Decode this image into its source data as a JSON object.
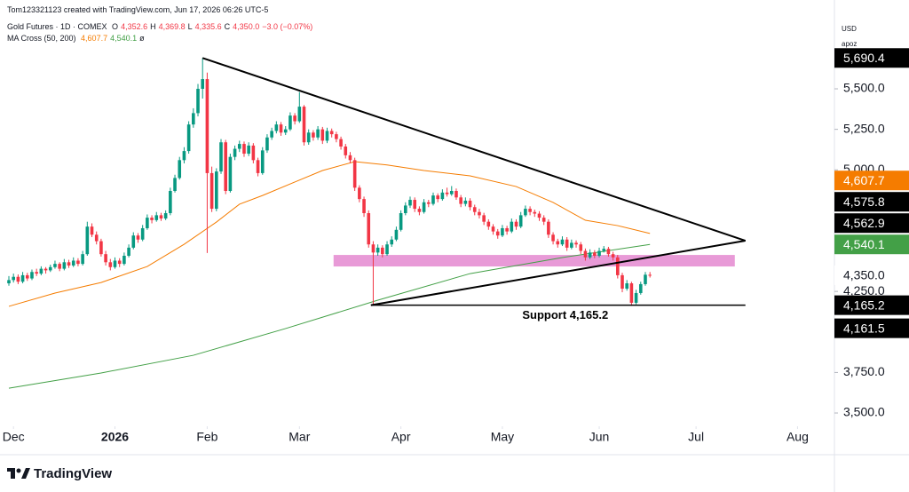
{
  "header": {
    "credit": "Tom123321123 created with TradingView.com, Jun 17, 2026 06:26 UTC-5",
    "symbol": "Gold Futures · 1D · COMEX",
    "ohlc": [
      {
        "key": "O",
        "value": "4,352.6"
      },
      {
        "key": "H",
        "value": "4,369.8"
      },
      {
        "key": "L",
        "value": "4,335.6"
      },
      {
        "key": "C",
        "value": "4,350.0"
      }
    ],
    "change": "−3.0 (−0.07%)",
    "indicator": "MA Cross (50, 200)",
    "indicator_values": [
      "4,607.7",
      "4,540.1"
    ],
    "indicator_extra": "ø",
    "currency": "USD",
    "account": "apoz"
  },
  "footer": {
    "brand": "TradingView"
  },
  "chart_data": {
    "type": "candlestick",
    "up_color": "#089981",
    "down_color": "#f23645",
    "xlim": [
      0,
      179
    ],
    "ylim": [
      3418,
      6048
    ],
    "xticks": [
      {
        "value": 1,
        "label": "Dec"
      },
      {
        "value": 23,
        "label": "2026"
      },
      {
        "value": 43,
        "label": "Feb"
      },
      {
        "value": 63,
        "label": "Mar"
      },
      {
        "value": 85,
        "label": "Apr"
      },
      {
        "value": 107,
        "label": "May"
      },
      {
        "value": 128,
        "label": "Jun"
      },
      {
        "value": 149,
        "label": "Jul"
      },
      {
        "value": 171,
        "label": "Aug"
      }
    ],
    "yticks": [
      {
        "value": 3500,
        "label": "3,500.0"
      },
      {
        "value": 3750,
        "label": "3,750.0"
      },
      {
        "value": 4250,
        "label": "4,250.0"
      },
      {
        "value": 5000,
        "label": "5,000.0"
      },
      {
        "value": 5250,
        "label": "5,250.0"
      },
      {
        "value": 5500,
        "label": "5,500.0"
      }
    ],
    "candles": [
      [
        4300,
        4345,
        4285,
        4320
      ],
      [
        4320,
        4360,
        4305,
        4340
      ],
      [
        4340,
        4355,
        4295,
        4310
      ],
      [
        4310,
        4370,
        4300,
        4350
      ],
      [
        4350,
        4365,
        4315,
        4330
      ],
      [
        4330,
        4385,
        4320,
        4370
      ],
      [
        4370,
        4390,
        4345,
        4360
      ],
      [
        4360,
        4405,
        4350,
        4390
      ],
      [
        4390,
        4400,
        4360,
        4380
      ],
      [
        4380,
        4415,
        4370,
        4400
      ],
      [
        4400,
        4440,
        4390,
        4420
      ],
      [
        4420,
        4430,
        4375,
        4390
      ],
      [
        4390,
        4450,
        4380,
        4430
      ],
      [
        4430,
        4445,
        4395,
        4410
      ],
      [
        4410,
        4460,
        4400,
        4440
      ],
      [
        4440,
        4455,
        4405,
        4420
      ],
      [
        4420,
        4500,
        4410,
        4480
      ],
      [
        4480,
        4680,
        4470,
        4650
      ],
      [
        4650,
        4670,
        4585,
        4600
      ],
      [
        4600,
        4620,
        4540,
        4560
      ],
      [
        4560,
        4575,
        4465,
        4480
      ],
      [
        4480,
        4500,
        4410,
        4430
      ],
      [
        4430,
        4450,
        4380,
        4400
      ],
      [
        4400,
        4460,
        4390,
        4440
      ],
      [
        4440,
        4455,
        4400,
        4420
      ],
      [
        4420,
        4490,
        4410,
        4470
      ],
      [
        4470,
        4540,
        4460,
        4520
      ],
      [
        4520,
        4615,
        4510,
        4595
      ],
      [
        4595,
        4610,
        4550,
        4570
      ],
      [
        4570,
        4660,
        4560,
        4640
      ],
      [
        4640,
        4725,
        4630,
        4705
      ],
      [
        4705,
        4720,
        4670,
        4690
      ],
      [
        4690,
        4740,
        4680,
        4720
      ],
      [
        4720,
        4735,
        4685,
        4700
      ],
      [
        4700,
        4750,
        4690,
        4733
      ],
      [
        4733,
        4890,
        4720,
        4870
      ],
      [
        4870,
        4970,
        4860,
        4950
      ],
      [
        4950,
        5080,
        4940,
        5060
      ],
      [
        5060,
        5140,
        5040,
        5116
      ],
      [
        5116,
        5300,
        5100,
        5280
      ],
      [
        5280,
        5380,
        5260,
        5350
      ],
      [
        5350,
        5530,
        5330,
        5500
      ],
      [
        5500,
        5690.4,
        5440,
        5560
      ],
      [
        5560,
        5600,
        4487,
        4980
      ],
      [
        4980,
        5020,
        4740,
        4760
      ],
      [
        4760,
        5010,
        4745,
        4990
      ],
      [
        4990,
        5190,
        4975,
        5170
      ],
      [
        5170,
        5185,
        4850,
        4870
      ],
      [
        4870,
        5100,
        4860,
        5080
      ],
      [
        5080,
        5150,
        5060,
        5130
      ],
      [
        5130,
        5180,
        5110,
        5160
      ],
      [
        5160,
        5175,
        5080,
        5100
      ],
      [
        5100,
        5170,
        5085,
        5150
      ],
      [
        5150,
        5165,
        5040,
        5060
      ],
      [
        5060,
        5075,
        4960,
        4980
      ],
      [
        4980,
        5140,
        4970,
        5120
      ],
      [
        5120,
        5220,
        5105,
        5200
      ],
      [
        5200,
        5260,
        5185,
        5240
      ],
      [
        5240,
        5300,
        5225,
        5280
      ],
      [
        5280,
        5295,
        5210,
        5230
      ],
      [
        5230,
        5270,
        5215,
        5250
      ],
      [
        5250,
        5355,
        5240,
        5335
      ],
      [
        5335,
        5350,
        5280,
        5300
      ],
      [
        5300,
        5480,
        5290,
        5390
      ],
      [
        5390,
        5400,
        5150,
        5170
      ],
      [
        5170,
        5250,
        5155,
        5230
      ],
      [
        5230,
        5245,
        5180,
        5200
      ],
      [
        5200,
        5270,
        5185,
        5250
      ],
      [
        5250,
        5265,
        5160,
        5180
      ],
      [
        5180,
        5260,
        5165,
        5240
      ],
      [
        5240,
        5255,
        5200,
        5220
      ],
      [
        5220,
        5235,
        5170,
        5190
      ],
      [
        5190,
        5205,
        5125,
        5144
      ],
      [
        5144,
        5160,
        5070,
        5090
      ],
      [
        5090,
        5110,
        5040,
        5060
      ],
      [
        5060,
        5075,
        4870,
        4890
      ],
      [
        4890,
        4905,
        4800,
        4820
      ],
      [
        4820,
        4835,
        4710,
        4733
      ],
      [
        4733,
        4750,
        4520,
        4540
      ],
      [
        4540,
        4560,
        4165.2,
        4490
      ],
      [
        4490,
        4540,
        4470,
        4520
      ],
      [
        4520,
        4535,
        4460,
        4480
      ],
      [
        4480,
        4560,
        4470,
        4540
      ],
      [
        4540,
        4590,
        4525,
        4570
      ],
      [
        4570,
        4650,
        4560,
        4630
      ],
      [
        4630,
        4750,
        4620,
        4733
      ],
      [
        4733,
        4800,
        4720,
        4780
      ],
      [
        4780,
        4835,
        4765,
        4815
      ],
      [
        4815,
        4830,
        4740,
        4760
      ],
      [
        4760,
        4775,
        4720,
        4740
      ],
      [
        4740,
        4820,
        4730,
        4800
      ],
      [
        4800,
        4815,
        4770,
        4790
      ],
      [
        4790,
        4860,
        4780,
        4842
      ],
      [
        4842,
        4855,
        4800,
        4820
      ],
      [
        4820,
        4880,
        4810,
        4860
      ],
      [
        4860,
        4890,
        4835,
        4850
      ],
      [
        4850,
        4900,
        4840,
        4870
      ],
      [
        4870,
        4885,
        4815,
        4830
      ],
      [
        4830,
        4845,
        4770,
        4790
      ],
      [
        4790,
        4830,
        4775,
        4810
      ],
      [
        4810,
        4825,
        4750,
        4770
      ],
      [
        4770,
        4785,
        4720,
        4740
      ],
      [
        4740,
        4760,
        4700,
        4720
      ],
      [
        4720,
        4735,
        4660,
        4680
      ],
      [
        4680,
        4695,
        4630,
        4650
      ],
      [
        4650,
        4665,
        4600,
        4620
      ],
      [
        4620,
        4635,
        4575,
        4595
      ],
      [
        4595,
        4660,
        4585,
        4640
      ],
      [
        4640,
        4655,
        4600,
        4620
      ],
      [
        4620,
        4700,
        4610,
        4680
      ],
      [
        4680,
        4695,
        4630,
        4650
      ],
      [
        4650,
        4740,
        4640,
        4720
      ],
      [
        4720,
        4780,
        4710,
        4760
      ],
      [
        4760,
        4775,
        4720,
        4740
      ],
      [
        4740,
        4755,
        4710,
        4730
      ],
      [
        4730,
        4745,
        4685,
        4705
      ],
      [
        4705,
        4720,
        4660,
        4680
      ],
      [
        4680,
        4695,
        4580,
        4600
      ],
      [
        4600,
        4615,
        4540,
        4560
      ],
      [
        4560,
        4575,
        4520,
        4540
      ],
      [
        4540,
        4590,
        4530,
        4570
      ],
      [
        4570,
        4585,
        4500,
        4520
      ],
      [
        4520,
        4570,
        4510,
        4550
      ],
      [
        4550,
        4565,
        4520,
        4540
      ],
      [
        4540,
        4555,
        4480,
        4500
      ],
      [
        4500,
        4515,
        4440,
        4460
      ],
      [
        4460,
        4510,
        4450,
        4490
      ],
      [
        4490,
        4505,
        4455,
        4470
      ],
      [
        4470,
        4520,
        4460,
        4500
      ],
      [
        4500,
        4530,
        4490,
        4513
      ],
      [
        4513,
        4525,
        4465,
        4480
      ],
      [
        4480,
        4495,
        4440,
        4460
      ],
      [
        4460,
        4475,
        4330,
        4350
      ],
      [
        4350,
        4365,
        4245,
        4267
      ],
      [
        4267,
        4320,
        4255,
        4300
      ],
      [
        4300,
        4310,
        4161.5,
        4180
      ],
      [
        4180,
        4260,
        4170,
        4240
      ],
      [
        4240,
        4310,
        4230,
        4295
      ],
      [
        4295,
        4370,
        4285,
        4353
      ],
      [
        4352.6,
        4369.8,
        4335.6,
        4350
      ]
    ],
    "ma_lines": [
      {
        "color": "#f57c00",
        "x": [
          0,
          10,
          20,
          30,
          38,
          45,
          50,
          55,
          62,
          68,
          75,
          82,
          90,
          100,
          110,
          118,
          125,
          132,
          139
        ],
        "values": [
          4158,
          4240,
          4305,
          4404,
          4541,
          4678,
          4788,
          4842,
          4925,
          4996,
          5051,
          5030,
          4996,
          4963,
          4897,
          4799,
          4689,
          4656,
          4607.7
        ]
      },
      {
        "color": "#43a047",
        "x": [
          0,
          20,
          40,
          60,
          80,
          100,
          120,
          139
        ],
        "values": [
          3653,
          3747,
          3856,
          4021,
          4196,
          4360,
          4459,
          4540.1
        ]
      }
    ],
    "zone": {
      "x": [
        70.4,
        157.4
      ],
      "y": [
        4404,
        4475
      ],
      "color": "#e68fd3"
    },
    "trendlines": [
      {
        "x": [
          42,
          159.7
        ],
        "y": [
          5690.4,
          4563
        ]
      },
      {
        "x": [
          78.5,
          159.7
        ],
        "y": [
          4165.2,
          4563
        ]
      }
    ],
    "support": {
      "x": [
        78.5,
        159.7
      ],
      "value": 4165.2,
      "label": "Support 4,165.2"
    },
    "price_tags": [
      {
        "value": 5690.4,
        "label": "5,690.4",
        "color": "#000000"
      },
      {
        "value": 4607.7,
        "label": "4,607.7",
        "color": "#f57c00"
      },
      {
        "value": 4575.8,
        "label": "4,575.8",
        "color": "#000000"
      },
      {
        "value": 4562.9,
        "label": "4,562.9",
        "color": "#000000"
      },
      {
        "value": 4540.1,
        "label": "4,540.1",
        "color": "#43a047"
      },
      {
        "value": 4350.0,
        "label": "4,350.0",
        "color": "#ffffff"
      },
      {
        "value": 4165.2,
        "label": "4,165.2",
        "color": "#000000"
      },
      {
        "value": 4161.5,
        "label": "4,161.5",
        "color": "#000000"
      }
    ]
  }
}
